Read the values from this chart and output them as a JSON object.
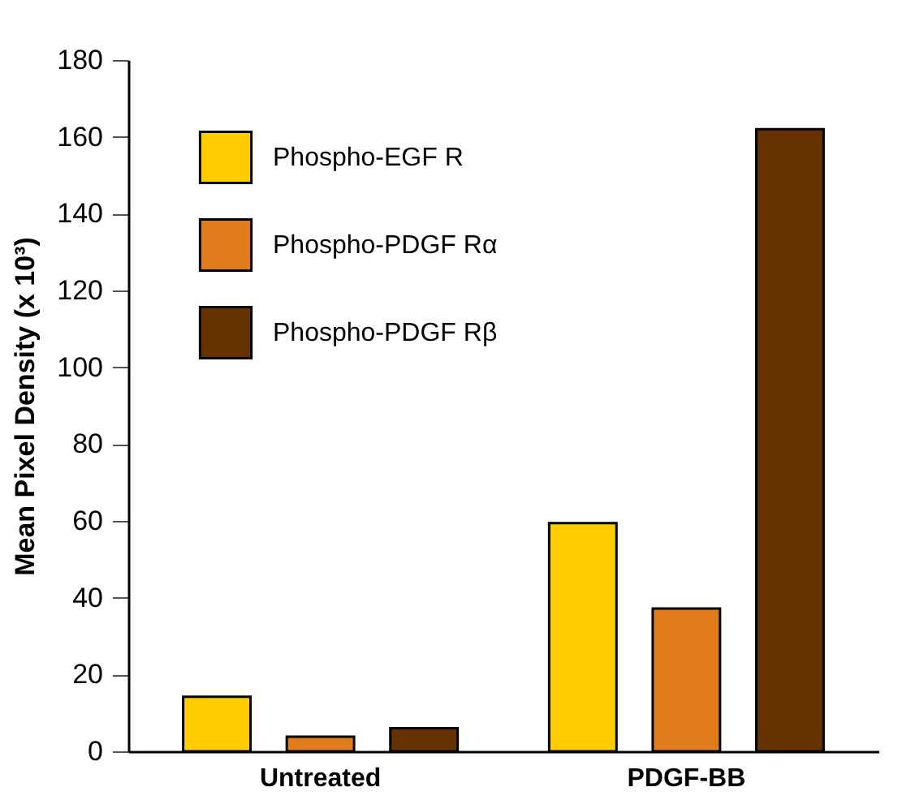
{
  "chart_data": {
    "type": "bar",
    "ylabel": "Mean Pixel Density (x 10³)",
    "categories": [
      "Untreated",
      "PDGF-BB"
    ],
    "series": [
      {
        "name": "Phospho-EGF R",
        "color": "#ffcc00",
        "values": [
          14.2,
          59.4
        ]
      },
      {
        "name": "Phospho-PDGF Rα",
        "color": "#e07b1e",
        "values": [
          3.8,
          37.2
        ]
      },
      {
        "name": "Phospho-PDGF Rβ",
        "color": "#663300",
        "values": [
          6.0,
          162
        ]
      }
    ],
    "ylim": [
      0,
      180
    ],
    "yticks": [
      0,
      20,
      40,
      60,
      80,
      100,
      120,
      140,
      160,
      180
    ],
    "grid": false,
    "legend": "top left"
  }
}
